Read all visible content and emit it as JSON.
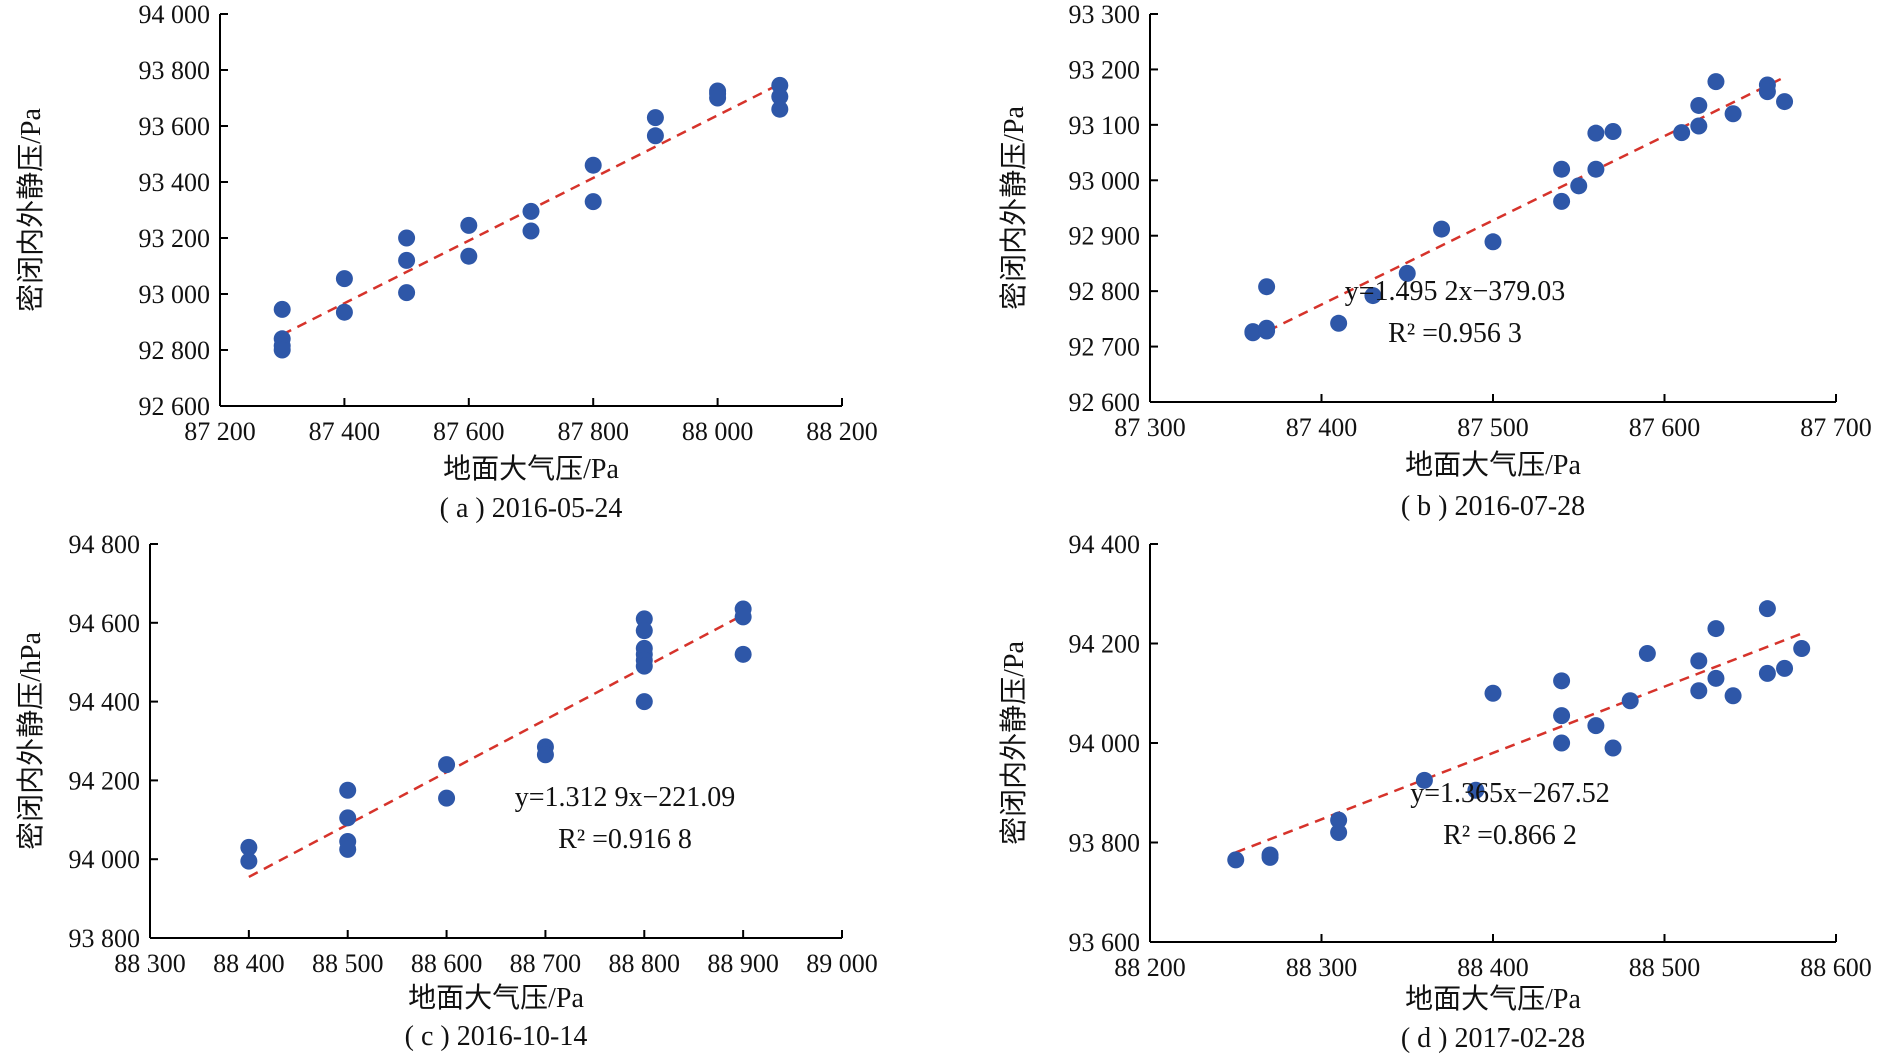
{
  "colors": {
    "points": "#2e57a8",
    "fit": "#d6332b",
    "axis": "#000000"
  },
  "chart_data": [
    {
      "type": "scatter",
      "caption": "( a ) 2016-05-24",
      "xlabel": "地面大气压/Pa",
      "ylabel": "密闭内外静压/Pa",
      "xlim": [
        87200,
        88200
      ],
      "ylim": [
        92600,
        94000
      ],
      "xticks": [
        87200,
        87400,
        87600,
        87800,
        88000,
        88200
      ],
      "yticks": [
        92600,
        92800,
        93000,
        93200,
        93400,
        93600,
        93800,
        94000
      ],
      "xtick_labels": [
        "87 200",
        "87 400",
        "87 600",
        "87 800",
        "88 000",
        "88 200"
      ],
      "ytick_labels": [
        "92 600",
        "92 800",
        "93 000",
        "93 200",
        "93 400",
        "93 600",
        "93 800",
        "94 000"
      ],
      "points": [
        [
          87300,
          92945
        ],
        [
          87300,
          92840
        ],
        [
          87300,
          92815
        ],
        [
          87300,
          92800
        ],
        [
          87400,
          93055
        ],
        [
          87400,
          92935
        ],
        [
          87500,
          93200
        ],
        [
          87500,
          93120
        ],
        [
          87500,
          93005
        ],
        [
          87600,
          93245
        ],
        [
          87600,
          93135
        ],
        [
          87700,
          93295
        ],
        [
          87700,
          93225
        ],
        [
          87800,
          93460
        ],
        [
          87800,
          93330
        ],
        [
          87900,
          93630
        ],
        [
          87900,
          93565
        ],
        [
          88000,
          93725
        ],
        [
          88000,
          93715
        ],
        [
          88000,
          93700
        ],
        [
          88100,
          93745
        ],
        [
          88100,
          93705
        ],
        [
          88100,
          93660
        ]
      ],
      "fit": {
        "x": [
          87300,
          88100
        ],
        "y": [
          92855,
          93750
        ]
      },
      "equation": "",
      "r2": ""
    },
    {
      "type": "scatter",
      "caption": "( b ) 2016-07-28",
      "xlabel": "地面大气压/Pa",
      "ylabel": "密闭内外静压/Pa",
      "xlim": [
        87300,
        87700
      ],
      "ylim": [
        92600,
        93300
      ],
      "xticks": [
        87300,
        87400,
        87500,
        87600,
        87700
      ],
      "yticks": [
        92600,
        92700,
        92800,
        92900,
        93000,
        93100,
        93200,
        93300
      ],
      "xtick_labels": [
        "87 300",
        "87 400",
        "87 500",
        "87 600",
        "87 700"
      ],
      "ytick_labels": [
        "92 600",
        "92 700",
        "92 800",
        "92 900",
        "93 000",
        "93 100",
        "93 200",
        "93 300"
      ],
      "points": [
        [
          87360,
          92727
        ],
        [
          87360,
          92725
        ],
        [
          87368,
          92733
        ],
        [
          87368,
          92728
        ],
        [
          87368,
          92808
        ],
        [
          87410,
          92742
        ],
        [
          87430,
          92792
        ],
        [
          87450,
          92832
        ],
        [
          87470,
          92912
        ],
        [
          87500,
          92889
        ],
        [
          87540,
          93020
        ],
        [
          87540,
          92962
        ],
        [
          87550,
          92990
        ],
        [
          87560,
          93085
        ],
        [
          87560,
          93020
        ],
        [
          87570,
          93088
        ],
        [
          87610,
          93086
        ],
        [
          87620,
          93135
        ],
        [
          87620,
          93098
        ],
        [
          87630,
          93178
        ],
        [
          87640,
          93120
        ],
        [
          87660,
          93172
        ],
        [
          87660,
          93160
        ],
        [
          87670,
          93142
        ]
      ],
      "fit": {
        "x": [
          87360,
          87668
        ],
        "y": [
          92715,
          93183
        ]
      },
      "equation": "y=1.495 2x−379.03",
      "r2": "R² =0.956 3"
    },
    {
      "type": "scatter",
      "caption": "( c ) 2016-10-14",
      "xlabel": "地面大气压/Pa",
      "ylabel": "密闭内外静压/hPa",
      "xlim": [
        88300,
        89000
      ],
      "ylim": [
        93800,
        94800
      ],
      "xticks": [
        88300,
        88400,
        88500,
        88600,
        88700,
        88800,
        88900,
        89000
      ],
      "yticks": [
        93800,
        94000,
        94200,
        94400,
        94600,
        94800
      ],
      "xtick_labels": [
        "88 300",
        "88 400",
        "88 500",
        "88 600",
        "88 700",
        "88 800",
        "88 900",
        "89 000"
      ],
      "ytick_labels": [
        "93 800",
        "94 000",
        "94 200",
        "94 400",
        "94 600",
        "94 800"
      ],
      "points": [
        [
          88400,
          94030
        ],
        [
          88400,
          93995
        ],
        [
          88500,
          94175
        ],
        [
          88500,
          94105
        ],
        [
          88500,
          94045
        ],
        [
          88500,
          94025
        ],
        [
          88600,
          94240
        ],
        [
          88600,
          94155
        ],
        [
          88700,
          94285
        ],
        [
          88700,
          94265
        ],
        [
          88800,
          94610
        ],
        [
          88800,
          94580
        ],
        [
          88800,
          94535
        ],
        [
          88800,
          94520
        ],
        [
          88800,
          94505
        ],
        [
          88800,
          94490
        ],
        [
          88800,
          94400
        ],
        [
          88900,
          94635
        ],
        [
          88900,
          94615
        ],
        [
          88900,
          94520
        ]
      ],
      "fit": {
        "x": [
          88400,
          88900
        ],
        "y": [
          93955,
          94620
        ]
      },
      "equation": "y=1.312 9x−221.09",
      "r2": "R² =0.916 8"
    },
    {
      "type": "scatter",
      "caption": "( d ) 2017-02-28",
      "xlabel": "地面大气压/Pa",
      "ylabel": "密闭内外静压/Pa",
      "xlim": [
        88200,
        88600
      ],
      "ylim": [
        93600,
        94400
      ],
      "xticks": [
        88200,
        88300,
        88400,
        88500,
        88600
      ],
      "yticks": [
        93600,
        93800,
        94000,
        94200,
        94400
      ],
      "xtick_labels": [
        "88 200",
        "88 300",
        "88 400",
        "88 500",
        "88 600"
      ],
      "ytick_labels": [
        "93 600",
        "93 800",
        "94 000",
        "94 200",
        "94 400"
      ],
      "points": [
        [
          88250,
          93765
        ],
        [
          88270,
          93775
        ],
        [
          88270,
          93770
        ],
        [
          88310,
          93845
        ],
        [
          88310,
          93820
        ],
        [
          88360,
          93925
        ],
        [
          88390,
          93905
        ],
        [
          88400,
          94100
        ],
        [
          88440,
          94125
        ],
        [
          88440,
          94055
        ],
        [
          88440,
          94000
        ],
        [
          88460,
          94035
        ],
        [
          88470,
          93990
        ],
        [
          88480,
          94085
        ],
        [
          88490,
          94180
        ],
        [
          88520,
          94165
        ],
        [
          88520,
          94105
        ],
        [
          88530,
          94230
        ],
        [
          88530,
          94130
        ],
        [
          88540,
          94095
        ],
        [
          88560,
          94270
        ],
        [
          88560,
          94140
        ],
        [
          88570,
          94150
        ],
        [
          88580,
          94190
        ]
      ],
      "fit": {
        "x": [
          88250,
          88580
        ],
        "y": [
          93780,
          94220
        ]
      },
      "equation": "y=1.365x−267.52",
      "r2": "R² =0.866 2"
    }
  ]
}
